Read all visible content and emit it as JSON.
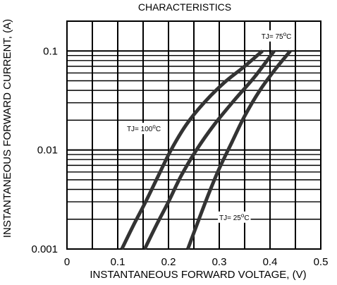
{
  "chart_data": {
    "type": "line",
    "title": "CHARACTERISTICS",
    "xlabel": "INSTANTANEOUS FORWARD VOLTAGE, (V)",
    "ylabel": "INSTANTANEOUS FORWARD CURRENT, (A)",
    "xlim": [
      0,
      0.5
    ],
    "ylim": [
      0.001,
      0.2
    ],
    "yscale": "log",
    "grid": true,
    "x_ticks": [
      {
        "value": 0,
        "label": "0"
      },
      {
        "value": 0.1,
        "label": "0.1"
      },
      {
        "value": 0.2,
        "label": "0.2"
      },
      {
        "value": 0.3,
        "label": "0.3"
      },
      {
        "value": 0.4,
        "label": "0.4"
      },
      {
        "value": 0.5,
        "label": "0.5"
      }
    ],
    "y_ticks": [
      {
        "value": 0.001,
        "label": "0.001"
      },
      {
        "value": 0.01,
        "label": "0.01"
      },
      {
        "value": 0.1,
        "label": "0.1"
      }
    ],
    "series": [
      {
        "name": "TJ= 100°C",
        "label_prefix": "TJ= 100",
        "label_sup": "o",
        "label_suffix": "C",
        "label_anchor": {
          "x": 0.118,
          "y": 0.0165
        },
        "x": [
          0.108,
          0.13,
          0.155,
          0.18,
          0.205,
          0.235,
          0.27,
          0.31,
          0.35,
          0.385
        ],
        "y": [
          0.001,
          0.0017,
          0.003,
          0.0055,
          0.01,
          0.018,
          0.03,
          0.048,
          0.07,
          0.1
        ]
      },
      {
        "name": "TJ= 75°C",
        "label_prefix": "TJ= 75",
        "label_sup": "o",
        "label_suffix": "C",
        "label_anchor": {
          "x": 0.383,
          "y": 0.142
        },
        "x": [
          0.153,
          0.175,
          0.2,
          0.225,
          0.255,
          0.29,
          0.33,
          0.37,
          0.408
        ],
        "y": [
          0.001,
          0.0017,
          0.003,
          0.0055,
          0.01,
          0.018,
          0.032,
          0.055,
          0.1
        ]
      },
      {
        "name": "TJ= 25°C",
        "label_prefix": "TJ= 25",
        "label_sup": "o",
        "label_suffix": "C",
        "label_anchor": {
          "x": 0.3,
          "y": 0.0021
        },
        "x": [
          0.238,
          0.26,
          0.28,
          0.3,
          0.325,
          0.35,
          0.38,
          0.41,
          0.44
        ],
        "y": [
          0.001,
          0.002,
          0.0037,
          0.0065,
          0.012,
          0.022,
          0.04,
          0.065,
          0.1
        ]
      }
    ]
  }
}
